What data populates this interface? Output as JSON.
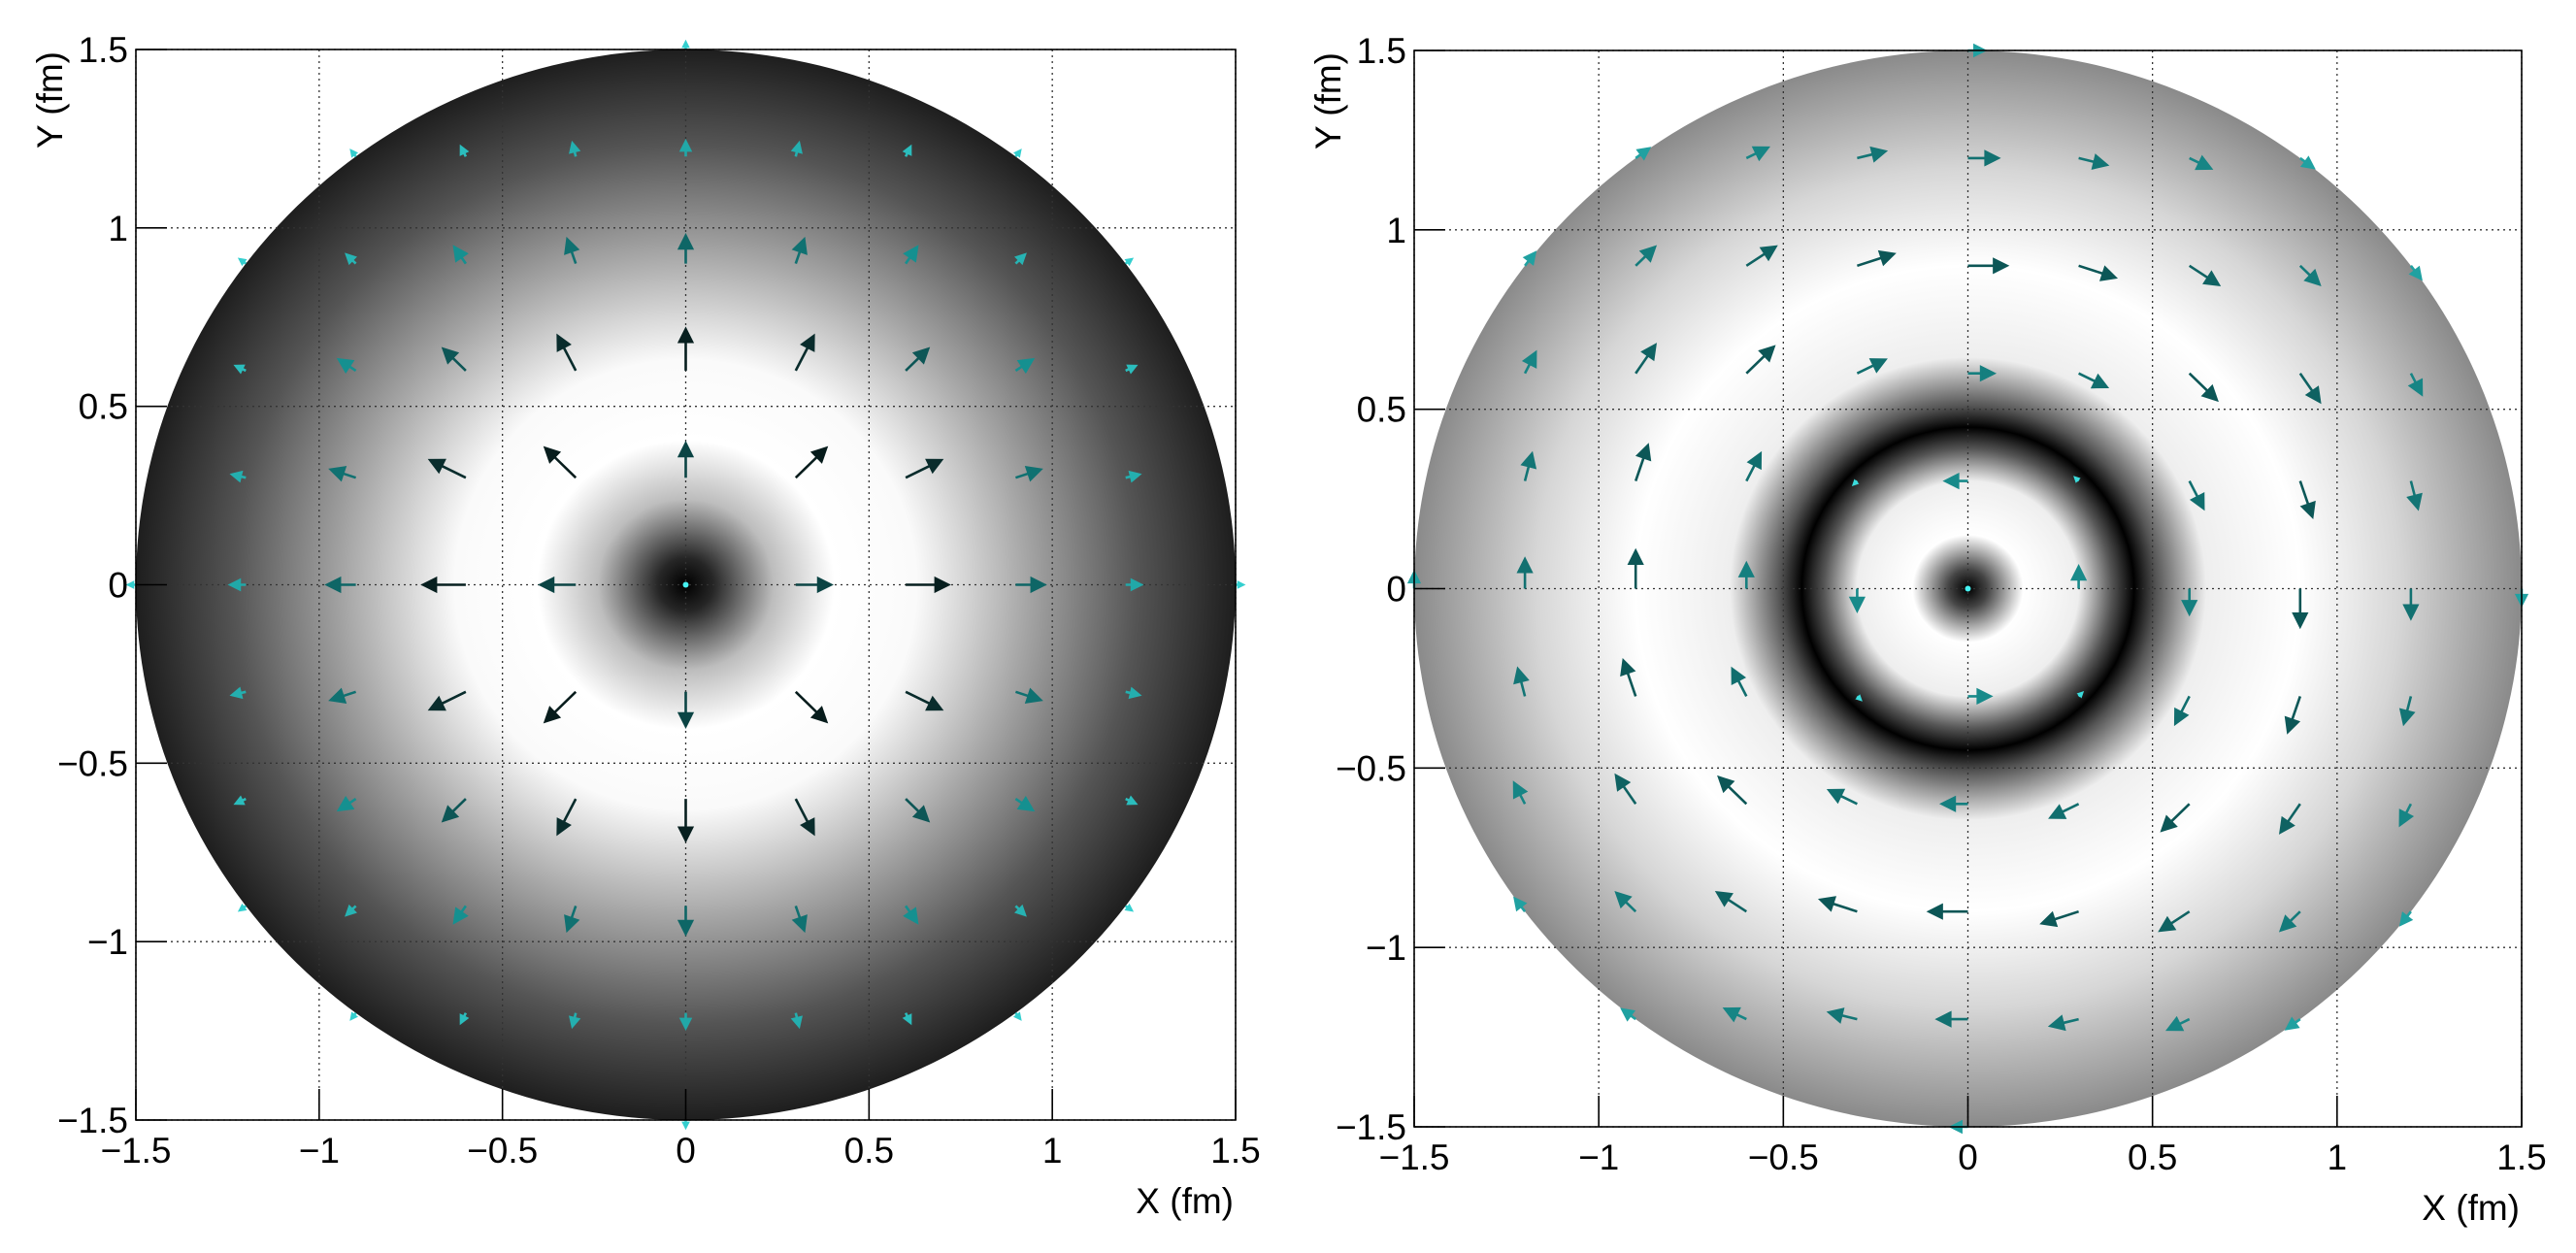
{
  "chart_data": [
    {
      "type": "quiver",
      "xlabel": "X (fm)",
      "ylabel": "Y (fm)",
      "xlim": [
        -1.5,
        1.5
      ],
      "ylim": [
        -1.5,
        1.5
      ],
      "xticks": [
        {
          "value": -1.5,
          "label": "−1.5"
        },
        {
          "value": -1,
          "label": "−1"
        },
        {
          "value": -0.5,
          "label": "−0.5"
        },
        0,
        0.5,
        1,
        1.5
      ],
      "yticks": [
        {
          "value": -1.5,
          "label": "−1.5"
        },
        {
          "value": -1,
          "label": "−1"
        },
        {
          "value": -0.5,
          "label": "−0.5"
        },
        0,
        0.5,
        1,
        1.5
      ],
      "grid": true,
      "arrow_colors": [
        "#46f2f2",
        "#128a8a",
        "#071c1c"
      ],
      "arrows": [
        [
          0,
          1.5,
          0,
          0.02
        ],
        [
          -0.9,
          1.2,
          -0.012,
          0.016
        ],
        [
          -0.6,
          1.2,
          -0.013,
          0.027
        ],
        [
          -0.3,
          1.2,
          -0.009,
          0.037
        ],
        [
          0,
          1.2,
          0,
          0.042
        ],
        [
          0.3,
          1.2,
          0.009,
          0.037
        ],
        [
          0.6,
          1.2,
          0.013,
          0.027
        ],
        [
          0.9,
          1.2,
          0.012,
          0.016
        ],
        [
          -1.2,
          0.9,
          -0.016,
          0.012
        ],
        [
          -0.9,
          0.9,
          -0.025,
          0.025
        ],
        [
          -0.6,
          0.9,
          -0.031,
          0.046
        ],
        [
          -0.3,
          0.9,
          -0.023,
          0.068
        ],
        [
          0,
          0.9,
          0,
          0.078
        ],
        [
          0.3,
          0.9,
          0.023,
          0.068
        ],
        [
          0.6,
          0.9,
          0.031,
          0.046
        ],
        [
          0.9,
          0.9,
          0.025,
          0.025
        ],
        [
          1.2,
          0.9,
          0.016,
          0.012
        ],
        [
          -1.2,
          0.6,
          -0.027,
          0.013
        ],
        [
          -0.9,
          0.6,
          -0.046,
          0.031
        ],
        [
          -0.6,
          0.6,
          -0.061,
          0.061
        ],
        [
          -0.3,
          0.6,
          -0.049,
          0.097
        ],
        [
          0,
          0.6,
          0,
          0.116
        ],
        [
          0.3,
          0.6,
          0.049,
          0.097
        ],
        [
          0.6,
          0.6,
          0.061,
          0.061
        ],
        [
          0.9,
          0.6,
          0.046,
          0.031
        ],
        [
          1.2,
          0.6,
          0.027,
          0.013
        ],
        [
          -1.2,
          0.3,
          -0.037,
          0.009
        ],
        [
          -0.9,
          0.3,
          -0.068,
          0.023
        ],
        [
          -0.6,
          0.3,
          -0.097,
          0.049
        ],
        [
          -0.3,
          0.3,
          -0.083,
          0.083
        ],
        [
          0,
          0.3,
          0,
          0.096
        ],
        [
          0.3,
          0.3,
          0.083,
          0.083
        ],
        [
          0.6,
          0.3,
          0.097,
          0.049
        ],
        [
          0.9,
          0.3,
          0.068,
          0.023
        ],
        [
          1.2,
          0.3,
          0.037,
          0.009
        ],
        [
          -1.5,
          0,
          -0.02,
          0
        ],
        [
          -1.2,
          0,
          -0.042,
          0
        ],
        [
          -0.9,
          0,
          -0.078,
          0
        ],
        [
          -0.6,
          0,
          -0.116,
          0
        ],
        [
          -0.3,
          0,
          -0.096,
          0
        ],
        [
          0,
          0,
          0,
          0
        ],
        [
          0.3,
          0,
          0.096,
          0
        ],
        [
          0.6,
          0,
          0.116,
          0
        ],
        [
          0.9,
          0,
          0.078,
          0
        ],
        [
          1.2,
          0,
          0.042,
          0
        ],
        [
          1.5,
          0,
          0.02,
          0
        ],
        [
          -1.2,
          -0.3,
          -0.037,
          -0.009
        ],
        [
          -0.9,
          -0.3,
          -0.068,
          -0.023
        ],
        [
          -0.6,
          -0.3,
          -0.097,
          -0.049
        ],
        [
          -0.3,
          -0.3,
          -0.083,
          -0.083
        ],
        [
          0,
          -0.3,
          0,
          -0.096
        ],
        [
          0.3,
          -0.3,
          0.083,
          -0.083
        ],
        [
          0.6,
          -0.3,
          0.097,
          -0.049
        ],
        [
          0.9,
          -0.3,
          0.068,
          -0.023
        ],
        [
          1.2,
          -0.3,
          0.037,
          -0.009
        ],
        [
          -1.2,
          -0.6,
          -0.027,
          -0.013
        ],
        [
          -0.9,
          -0.6,
          -0.046,
          -0.031
        ],
        [
          -0.6,
          -0.6,
          -0.061,
          -0.061
        ],
        [
          -0.3,
          -0.6,
          -0.049,
          -0.097
        ],
        [
          0,
          -0.6,
          0,
          -0.116
        ],
        [
          0.3,
          -0.6,
          0.049,
          -0.097
        ],
        [
          0.6,
          -0.6,
          0.061,
          -0.061
        ],
        [
          0.9,
          -0.6,
          0.046,
          -0.031
        ],
        [
          1.2,
          -0.6,
          0.027,
          -0.013
        ],
        [
          -1.2,
          -0.9,
          -0.016,
          -0.012
        ],
        [
          -0.9,
          -0.9,
          -0.025,
          -0.025
        ],
        [
          -0.6,
          -0.9,
          -0.031,
          -0.046
        ],
        [
          -0.3,
          -0.9,
          -0.023,
          -0.068
        ],
        [
          0,
          -0.9,
          0,
          -0.078
        ],
        [
          0.3,
          -0.9,
          0.023,
          -0.068
        ],
        [
          0.6,
          -0.9,
          0.031,
          -0.046
        ],
        [
          0.9,
          -0.9,
          0.025,
          -0.025
        ],
        [
          1.2,
          -0.9,
          0.016,
          -0.012
        ],
        [
          -0.9,
          -1.2,
          -0.012,
          -0.016
        ],
        [
          -0.6,
          -1.2,
          -0.013,
          -0.027
        ],
        [
          -0.3,
          -1.2,
          -0.009,
          -0.037
        ],
        [
          0,
          -1.2,
          0,
          -0.042
        ],
        [
          0.3,
          -1.2,
          0.009,
          -0.037
        ],
        [
          0.6,
          -1.2,
          0.013,
          -0.027
        ],
        [
          0.9,
          -1.2,
          0.012,
          -0.016
        ],
        [
          0,
          -1.5,
          0,
          -0.02
        ]
      ]
    },
    {
      "type": "quiver",
      "xlabel": "X (fm)",
      "ylabel": "Y (fm)",
      "xlim": [
        -1.5,
        1.5
      ],
      "ylim": [
        -1.5,
        1.5
      ],
      "xticks": [
        {
          "value": -1.5,
          "label": "−1.5"
        },
        {
          "value": -1,
          "label": "−1"
        },
        {
          "value": -0.5,
          "label": "−0.5"
        },
        0,
        0.5,
        1,
        1.5
      ],
      "yticks": [
        {
          "value": -1.5,
          "label": "−1.5"
        },
        {
          "value": -1,
          "label": "−1"
        },
        {
          "value": -0.5,
          "label": "−0.5"
        },
        0,
        0.5,
        1,
        1.5
      ],
      "grid": true,
      "arrow_colors": [
        "#46f2f2",
        "#1a9494",
        "#0c5656"
      ],
      "arrows": [
        [
          0,
          1.5,
          0.045,
          0
        ],
        [
          -0.9,
          1.2,
          0.036,
          0.027
        ],
        [
          -0.6,
          1.2,
          0.058,
          0.029
        ],
        [
          -0.3,
          1.2,
          0.076,
          0.019
        ],
        [
          0,
          1.2,
          0.082,
          0
        ],
        [
          0.3,
          1.2,
          0.076,
          -0.019
        ],
        [
          0.6,
          1.2,
          0.058,
          -0.029
        ],
        [
          0.9,
          1.2,
          0.036,
          -0.027
        ],
        [
          -1.2,
          0.9,
          0.027,
          0.036
        ],
        [
          -0.9,
          0.9,
          0.052,
          0.052
        ],
        [
          -0.6,
          0.9,
          0.079,
          0.053
        ],
        [
          -0.3,
          0.9,
          0.099,
          0.033
        ],
        [
          0,
          0.9,
          0.105,
          0
        ],
        [
          0.3,
          0.9,
          0.099,
          -0.033
        ],
        [
          0.6,
          0.9,
          0.079,
          -0.053
        ],
        [
          0.9,
          0.9,
          0.052,
          -0.052
        ],
        [
          1.2,
          0.9,
          0.027,
          -0.036
        ],
        [
          -1.2,
          0.6,
          0.029,
          0.058
        ],
        [
          -0.9,
          0.6,
          0.053,
          0.079
        ],
        [
          -0.6,
          0.6,
          0.074,
          0.074
        ],
        [
          -0.3,
          0.6,
          0.076,
          0.038
        ],
        [
          0,
          0.6,
          0.07,
          0
        ],
        [
          0.3,
          0.6,
          0.076,
          -0.038
        ],
        [
          0.6,
          0.6,
          0.074,
          -0.074
        ],
        [
          0.9,
          0.6,
          0.053,
          -0.079
        ],
        [
          1.2,
          0.6,
          0.029,
          -0.058
        ],
        [
          -1.2,
          0.3,
          0.019,
          0.076
        ],
        [
          -0.9,
          0.3,
          0.033,
          0.099
        ],
        [
          -0.6,
          0.3,
          0.038,
          0.076
        ],
        [
          -0.3,
          0.3,
          -0.009,
          -0.009
        ],
        [
          0,
          0.3,
          -0.061,
          0
        ],
        [
          0.3,
          0.3,
          -0.009,
          0.009
        ],
        [
          0.6,
          0.3,
          0.038,
          -0.076
        ],
        [
          0.9,
          0.3,
          0.033,
          -0.099
        ],
        [
          1.2,
          0.3,
          0.019,
          -0.076
        ],
        [
          -1.5,
          0,
          0,
          0.045
        ],
        [
          -1.2,
          0,
          0,
          0.082
        ],
        [
          -0.9,
          0,
          0,
          0.105
        ],
        [
          -0.6,
          0,
          0,
          0.07
        ],
        [
          -0.3,
          0,
          0,
          -0.061
        ],
        [
          0,
          0,
          0,
          0
        ],
        [
          0.3,
          0,
          0,
          0.061
        ],
        [
          0.6,
          0,
          0,
          -0.07
        ],
        [
          0.9,
          0,
          0,
          -0.105
        ],
        [
          1.2,
          0,
          0,
          -0.082
        ],
        [
          1.5,
          0,
          0,
          -0.045
        ],
        [
          -1.2,
          -0.3,
          -0.019,
          0.076
        ],
        [
          -0.9,
          -0.3,
          -0.033,
          0.099
        ],
        [
          -0.6,
          -0.3,
          -0.038,
          0.076
        ],
        [
          -0.3,
          -0.3,
          0.009,
          -0.009
        ],
        [
          0,
          -0.3,
          0.061,
          0
        ],
        [
          0.3,
          -0.3,
          0.009,
          0.009
        ],
        [
          0.6,
          -0.3,
          -0.038,
          -0.076
        ],
        [
          0.9,
          -0.3,
          -0.033,
          -0.099
        ],
        [
          1.2,
          -0.3,
          -0.019,
          -0.076
        ],
        [
          -1.2,
          -0.6,
          -0.029,
          0.058
        ],
        [
          -0.9,
          -0.6,
          -0.053,
          0.079
        ],
        [
          -0.6,
          -0.6,
          -0.074,
          0.074
        ],
        [
          -0.3,
          -0.6,
          -0.076,
          0.038
        ],
        [
          0,
          -0.6,
          -0.07,
          0
        ],
        [
          0.3,
          -0.6,
          -0.076,
          -0.038
        ],
        [
          0.6,
          -0.6,
          -0.074,
          -0.074
        ],
        [
          0.9,
          -0.6,
          -0.053,
          -0.079
        ],
        [
          1.2,
          -0.6,
          -0.029,
          -0.058
        ],
        [
          -1.2,
          -0.9,
          -0.027,
          0.036
        ],
        [
          -0.9,
          -0.9,
          -0.052,
          0.052
        ],
        [
          -0.6,
          -0.9,
          -0.079,
          0.053
        ],
        [
          -0.3,
          -0.9,
          -0.099,
          0.033
        ],
        [
          0,
          -0.9,
          -0.105,
          0
        ],
        [
          0.3,
          -0.9,
          -0.099,
          -0.033
        ],
        [
          0.6,
          -0.9,
          -0.079,
          -0.053
        ],
        [
          0.9,
          -0.9,
          -0.052,
          -0.052
        ],
        [
          1.2,
          -0.9,
          -0.027,
          -0.036
        ],
        [
          -0.9,
          -1.2,
          -0.036,
          0.027
        ],
        [
          -0.6,
          -1.2,
          -0.058,
          0.029
        ],
        [
          -0.3,
          -1.2,
          -0.076,
          0.019
        ],
        [
          0,
          -1.2,
          -0.082,
          0
        ],
        [
          0.3,
          -1.2,
          -0.076,
          -0.019
        ],
        [
          0.6,
          -1.2,
          -0.058,
          -0.029
        ],
        [
          0.9,
          -1.2,
          -0.036,
          -0.027
        ],
        [
          0,
          -1.5,
          -0.045,
          0
        ]
      ]
    }
  ]
}
